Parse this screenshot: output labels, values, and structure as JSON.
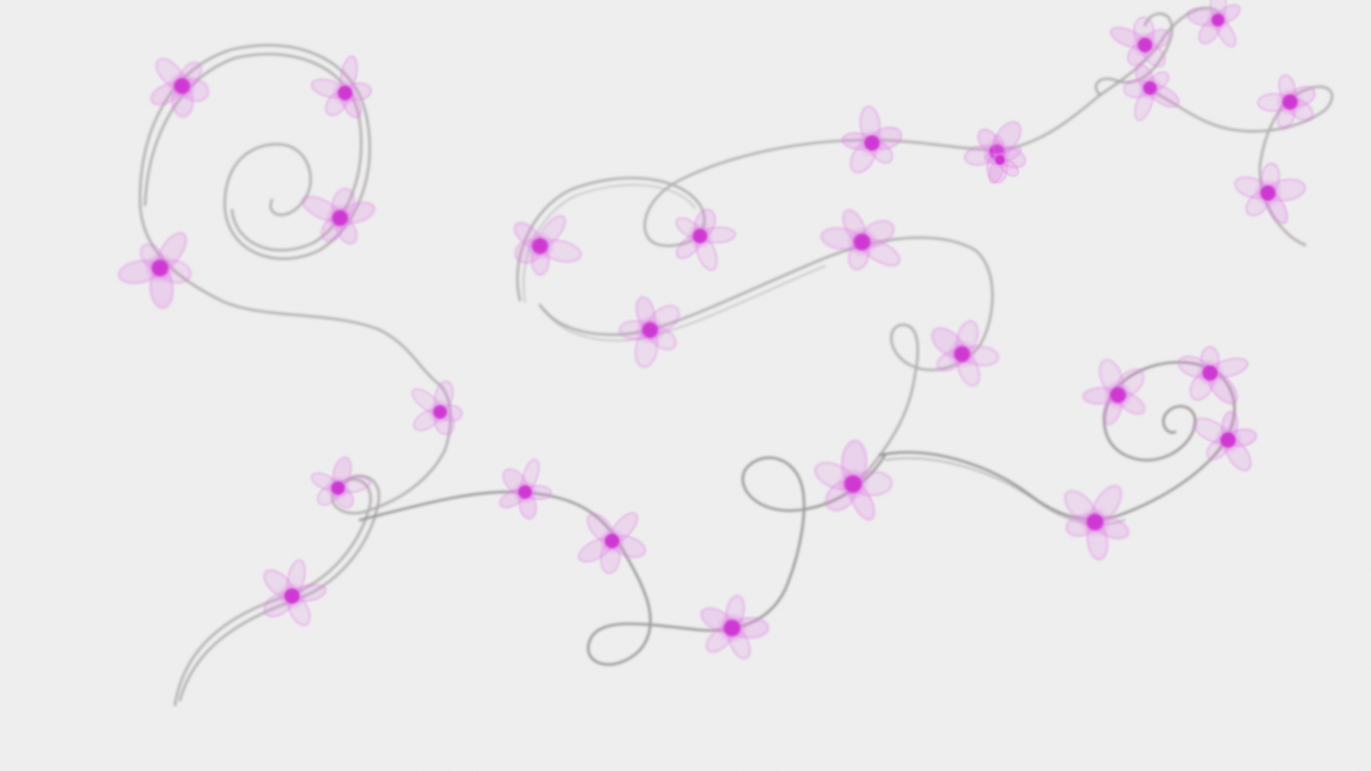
{
  "artwork": {
    "paper_color": "#f2f2f2",
    "vine_color": "#a8a3a3",
    "vine_dark_color": "#8c8888",
    "petal_color": "#e08be6",
    "center_color": "#cc2fd0",
    "flower_count": 28
  }
}
